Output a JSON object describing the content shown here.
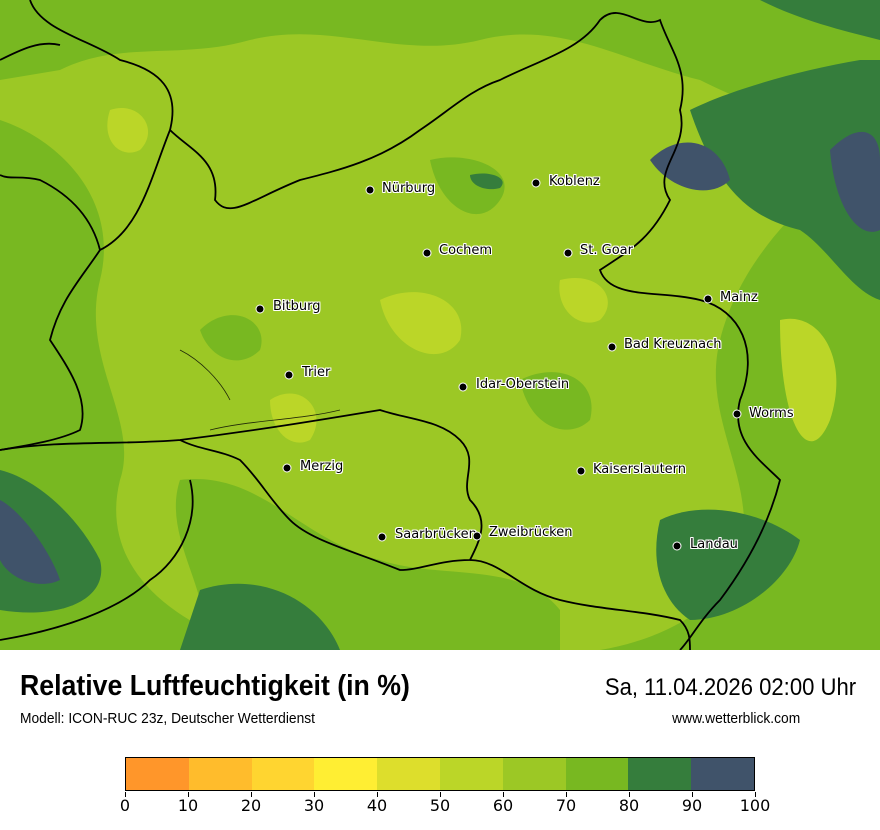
{
  "title": "Relative Luftfeuchtigkeit (in %)",
  "datetime": "Sa, 11.04.2026 02:00 Uhr",
  "subtitle": "Modell: ICON-RUC 23z, Deutscher Wetterdienst",
  "website": "www.wetterblick.com",
  "legend": {
    "unit": "%",
    "ticks": [
      "0",
      "10",
      "20",
      "30",
      "40",
      "50",
      "60",
      "70",
      "80",
      "90",
      "100"
    ],
    "colors": [
      "#FF962A",
      "#FFBC2C",
      "#FFD530",
      "#FFEE33",
      "#DDDE2C",
      "#BBD628",
      "#9CC825",
      "#78B821",
      "#357D3C",
      "#40536A"
    ]
  },
  "cities": [
    {
      "name": "Nürburg"
    },
    {
      "name": "Koblenz"
    },
    {
      "name": "Cochem"
    },
    {
      "name": "St. Goar"
    },
    {
      "name": "Bitburg"
    },
    {
      "name": "Mainz"
    },
    {
      "name": "Bad Kreuznach"
    },
    {
      "name": "Trier"
    },
    {
      "name": "Idar-Oberstein"
    },
    {
      "name": "Worms"
    },
    {
      "name": "Merzig"
    },
    {
      "name": "Kaiserslautern"
    },
    {
      "name": "Saarbrücken"
    },
    {
      "name": "Zweibrücken"
    },
    {
      "name": "Landau"
    }
  ]
}
